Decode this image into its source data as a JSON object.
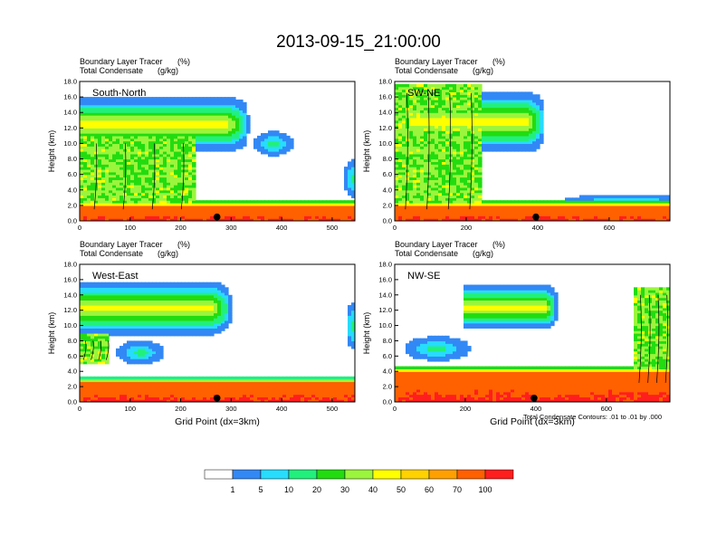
{
  "title": "2013-09-15_21:00:00",
  "footnote": "Total Condensate Contours: .01 to .01 by .000",
  "colorbar": {
    "colors": [
      "#ffffff",
      "#3288f5",
      "#27dcfc",
      "#22f07c",
      "#22dc10",
      "#9bf53c",
      "#ffff00",
      "#ffd200",
      "#ffa000",
      "#ff6000",
      "#ff1e1e"
    ],
    "labels": [
      "1",
      "5",
      "10",
      "20",
      "30",
      "40",
      "50",
      "60",
      "70",
      "100"
    ]
  },
  "chart_data": [
    {
      "type": "heatmap",
      "id": "south-north",
      "panel_label": "South-North",
      "field_label": "Boundary Layer Tracer",
      "field_units": "(%)",
      "contour_label": "Total Condensate",
      "contour_units": "(g/kg)",
      "xlabel": "",
      "ylabel": "Height (km)",
      "xlim": [
        0,
        545
      ],
      "ylim": [
        0,
        18
      ],
      "xticks": [
        "0",
        "100",
        "200",
        "300",
        "400",
        "500"
      ],
      "yticks": [
        "0.0",
        "2.0",
        "4.0",
        "6.0",
        "8.0",
        "10.0",
        "12.0",
        "14.0",
        "16.0",
        "18.0"
      ],
      "marker_x": 272,
      "anvil": {
        "x0": 0,
        "x1": 335,
        "z_mid": 12.5,
        "thick": 3.6
      },
      "tower": {
        "x0": 0,
        "x1": 230,
        "z0": 1.0,
        "z1": 11.0
      },
      "bl_top": 2.0,
      "blobs": [
        [
          385,
          10.0,
          25,
          1.0
        ],
        [
          540,
          5.5,
          10,
          1.5
        ]
      ]
    },
    {
      "type": "heatmap",
      "id": "sw-ne",
      "panel_label": "SW-NE",
      "field_label": "Boundary Layer Tracer",
      "field_units": "(%)",
      "contour_label": "Total Condensate",
      "contour_units": "(g/kg)",
      "xlabel": "",
      "ylabel": "Height (km)",
      "xlim": [
        0,
        770
      ],
      "ylim": [
        0,
        18
      ],
      "xticks": [
        "0",
        "200",
        "400",
        "600"
      ],
      "yticks": [
        "0.0",
        "2.0",
        "4.0",
        "6.0",
        "8.0",
        "10.0",
        "12.0",
        "14.0",
        "16.0",
        "18.0"
      ],
      "marker_x": 395,
      "anvil": {
        "x0": 40,
        "x1": 420,
        "z_mid": 12.8,
        "thick": 4.0
      },
      "tower": {
        "x0": 0,
        "x1": 240,
        "z0": 1.0,
        "z1": 17.5
      },
      "bl_top": 2.0,
      "blobs": [
        [
          650,
          2.5,
          120,
          0.6
        ]
      ]
    },
    {
      "type": "heatmap",
      "id": "west-east",
      "panel_label": "West-East",
      "field_label": "Boundary Layer Tracer",
      "field_units": "(%)",
      "contour_label": "Total Condensate",
      "contour_units": "(g/kg)",
      "xlabel": "Grid Point (dx=3km)",
      "ylabel": "Height (km)",
      "xlim": [
        0,
        545
      ],
      "ylim": [
        0,
        18
      ],
      "xticks": [
        "0",
        "100",
        "200",
        "300",
        "400",
        "500"
      ],
      "yticks": [
        "0.0",
        "2.0",
        "4.0",
        "6.0",
        "8.0",
        "10.0",
        "12.0",
        "14.0",
        "16.0",
        "18.0"
      ],
      "marker_x": 272,
      "anvil": {
        "x0": 0,
        "x1": 300,
        "z_mid": 12.3,
        "thick": 3.6
      },
      "tower": {
        "x0": 0,
        "x1": 60,
        "z0": 5.0,
        "z1": 9.0
      },
      "bl_top": 2.6,
      "blobs": [
        [
          540,
          10.0,
          8,
          2.0
        ],
        [
          120,
          6.5,
          30,
          1.0
        ]
      ]
    },
    {
      "type": "heatmap",
      "id": "nw-se",
      "panel_label": "NW-SE",
      "field_label": "Boundary Layer Tracer",
      "field_units": "(%)",
      "contour_label": "Total Condensate",
      "contour_units": "(g/kg)",
      "xlabel": "Grid Point (dx=3km)",
      "ylabel": "Height (km)",
      "xlim": [
        0,
        780
      ],
      "ylim": [
        0,
        18
      ],
      "xticks": [
        "0",
        "200",
        "400",
        "600"
      ],
      "yticks": [
        "0.0",
        "2.0",
        "4.0",
        "6.0",
        "8.0",
        "10.0",
        "12.0",
        "14.0",
        "16.0",
        "18.0"
      ],
      "marker_x": 395,
      "anvil": {
        "x0": 200,
        "x1": 460,
        "z_mid": 12.4,
        "thick": 3.0
      },
      "tower": {
        "x0": 680,
        "x1": 780,
        "z0": 2.0,
        "z1": 15.0
      },
      "bl_top": 4.0,
      "blobs": [
        [
          120,
          7.0,
          60,
          1.0
        ],
        [
          300,
          3.0,
          60,
          0.8
        ]
      ]
    }
  ]
}
